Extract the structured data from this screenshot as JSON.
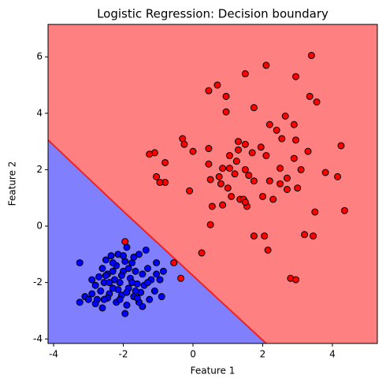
{
  "chart_data": {
    "type": "scatter",
    "title": "Logistic Regression: Decision boundary",
    "x_label": "Feature 1",
    "y_label": "Feature 2",
    "xlim": [
      -4.16,
      5.29
    ],
    "ylim": [
      -4.16,
      7.15
    ],
    "xticks": [
      -4,
      -2,
      0,
      2,
      4
    ],
    "yticks": [
      -4,
      -2,
      0,
      2,
      4,
      6
    ],
    "region_colors": [
      "#ff8080",
      "#8080ff"
    ],
    "boundary": {
      "color": "#ee2222",
      "x": [
        -4.16,
        -2.15,
        2.1
      ],
      "y": [
        3.05,
        0.7,
        -4.16
      ]
    },
    "series": [
      {
        "color": "#ff0000",
        "x": [
          3.4,
          2.1,
          1.5,
          2.95,
          0.7,
          0.45,
          0.95,
          3.35,
          3.55,
          1.75,
          0.95,
          2.65,
          2.9,
          2.2,
          2.4,
          2.55,
          2.95,
          -0.3,
          -0.25,
          0.45,
          0.0,
          -1.1,
          -1.25,
          1.3,
          1.3,
          1.05,
          1.95,
          2.1,
          2.9,
          3.3,
          3.1,
          4.25,
          1.7,
          1.5,
          1.25,
          1.05,
          0.85,
          0.75,
          0.5,
          1.2,
          1.5,
          1.6,
          2.5,
          2.7,
          3.8,
          4.15,
          0.45,
          -1.05,
          -0.8,
          -0.8,
          -0.95,
          -0.1,
          0.8,
          1.0,
          1.1,
          1.35,
          1.55,
          1.75,
          2.2,
          2.5,
          2.7,
          3.0,
          2.0,
          2.3,
          0.55,
          0.85,
          0.5,
          1.45,
          3.5,
          4.35,
          1.5,
          1.75,
          2.05,
          3.2,
          3.45,
          2.15,
          0.25,
          -0.55,
          -0.35,
          2.8,
          2.95,
          -1.95
        ],
        "y": [
          6.05,
          5.7,
          5.4,
          5.3,
          5.0,
          4.8,
          4.6,
          4.6,
          4.4,
          4.2,
          4.05,
          3.9,
          3.6,
          3.6,
          3.4,
          3.1,
          3.05,
          3.1,
          2.9,
          2.75,
          2.65,
          2.6,
          2.55,
          3.0,
          2.7,
          2.5,
          2.8,
          2.5,
          2.4,
          2.65,
          2.0,
          2.85,
          2.6,
          2.9,
          2.3,
          2.05,
          2.05,
          1.75,
          1.65,
          1.85,
          2.0,
          1.8,
          2.05,
          1.7,
          1.9,
          1.75,
          2.2,
          1.75,
          2.25,
          1.55,
          1.55,
          1.25,
          1.5,
          1.35,
          1.05,
          0.95,
          0.7,
          1.6,
          1.6,
          1.5,
          1.3,
          1.35,
          1.05,
          0.95,
          0.7,
          0.75,
          0.05,
          0.95,
          0.5,
          0.55,
          0.85,
          -0.35,
          -0.35,
          -0.3,
          -0.35,
          -0.85,
          -0.95,
          -1.3,
          -1.85,
          -1.85,
          -1.9,
          -0.55
        ]
      },
      {
        "color": "#0000ff",
        "x": [
          -3.25,
          -3.25,
          -3.1,
          -2.9,
          -2.8,
          -2.7,
          -2.65,
          -2.6,
          -2.55,
          -2.5,
          -2.45,
          -2.4,
          -2.35,
          -2.3,
          -2.25,
          -2.2,
          -2.2,
          -2.15,
          -2.1,
          -2.05,
          -2.0,
          -1.95,
          -1.95,
          -1.9,
          -1.9,
          -1.85,
          -1.8,
          -1.75,
          -1.7,
          -1.65,
          -1.6,
          -1.55,
          -1.5,
          -1.45,
          -1.4,
          -1.35,
          -1.3,
          -1.25,
          -1.2,
          -1.1,
          -1.05,
          -0.95,
          -0.9,
          -0.85,
          -2.75,
          -2.6,
          -2.45,
          -2.9,
          -2.3,
          -2.05,
          -1.85,
          -1.65,
          -1.55,
          -1.75,
          -2.15,
          -2.4,
          -2.55,
          -1.45,
          -1.05,
          -1.3,
          -2.0,
          -2.3,
          -1.7,
          -2.8,
          -3.0,
          -1.6,
          -2.1,
          -1.9,
          -2.5
        ],
        "y": [
          -1.3,
          -2.7,
          -2.5,
          -2.4,
          -2.1,
          -1.8,
          -2.3,
          -1.5,
          -2.0,
          -1.2,
          -1.7,
          -2.4,
          -1.05,
          -2.2,
          -1.9,
          -1.4,
          -2.7,
          -1.0,
          -2.0,
          -2.45,
          -1.6,
          -1.25,
          -3.1,
          -2.8,
          -0.75,
          -2.2,
          -1.85,
          -1.3,
          -2.5,
          -1.6,
          -2.05,
          -1.0,
          -2.35,
          -1.7,
          -2.1,
          -0.85,
          -1.5,
          -2.6,
          -1.9,
          -2.3,
          -1.3,
          -1.9,
          -2.5,
          -1.6,
          -2.6,
          -2.9,
          -2.55,
          -1.9,
          -1.6,
          -1.75,
          -1.5,
          -2.3,
          -2.7,
          -2.0,
          -2.25,
          -2.0,
          -2.6,
          -2.85,
          -1.7,
          -2.0,
          -1.05,
          -1.3,
          -1.1,
          -2.75,
          -2.6,
          -2.55,
          -2.6,
          -2.35,
          -1.75
        ]
      }
    ]
  }
}
